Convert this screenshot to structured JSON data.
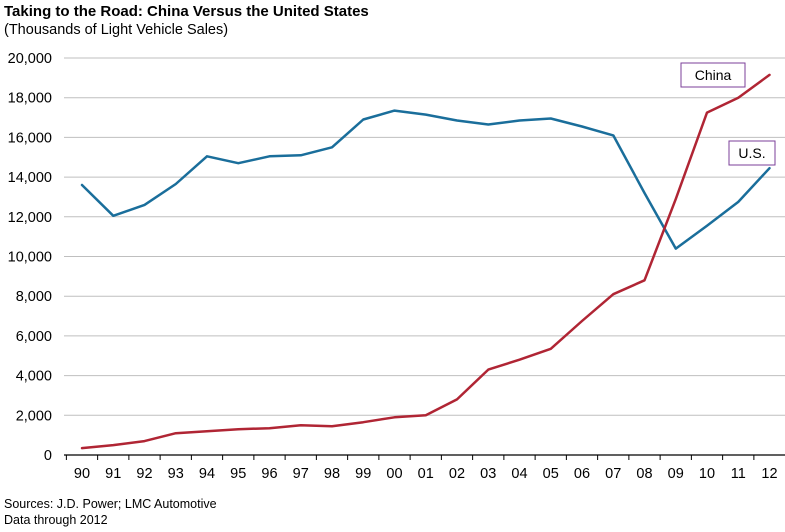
{
  "title": "Taking to the Road: China Versus the United States",
  "subtitle": "(Thousands of Light Vehicle Sales)",
  "sources": "Sources: J.D. Power; LMC Automotive",
  "data_note": "Data through 2012",
  "chart_data": {
    "type": "line",
    "title": "Taking to the Road: China Versus the United States",
    "subtitle": "(Thousands of Light Vehicle Sales)",
    "xlabel": "",
    "ylabel": "",
    "categories": [
      "90",
      "91",
      "92",
      "93",
      "94",
      "95",
      "96",
      "97",
      "98",
      "99",
      "00",
      "01",
      "02",
      "03",
      "04",
      "05",
      "06",
      "07",
      "08",
      "09",
      "10",
      "11",
      "12"
    ],
    "yticks": [
      "0",
      "2,000",
      "4,000",
      "6,000",
      "8,000",
      "10,000",
      "12,000",
      "14,000",
      "16,000",
      "18,000",
      "20,000"
    ],
    "ylim": [
      0,
      20000
    ],
    "grid": true,
    "series": [
      {
        "name": "U.S.",
        "color": "#1a6e9b",
        "values": [
          13600,
          12050,
          12600,
          13650,
          15050,
          14700,
          15050,
          15100,
          15500,
          16900,
          17350,
          17150,
          16850,
          16650,
          16850,
          16950,
          16550,
          16100,
          13200,
          10400,
          11550,
          12750,
          14450
        ]
      },
      {
        "name": "China",
        "color": "#b02534",
        "values": [
          350,
          500,
          700,
          1100,
          1200,
          1300,
          1350,
          1500,
          1450,
          1650,
          1900,
          2000,
          2800,
          4300,
          4800,
          5350,
          6750,
          8100,
          8800,
          12900,
          17250,
          18000,
          19150
        ]
      }
    ]
  }
}
